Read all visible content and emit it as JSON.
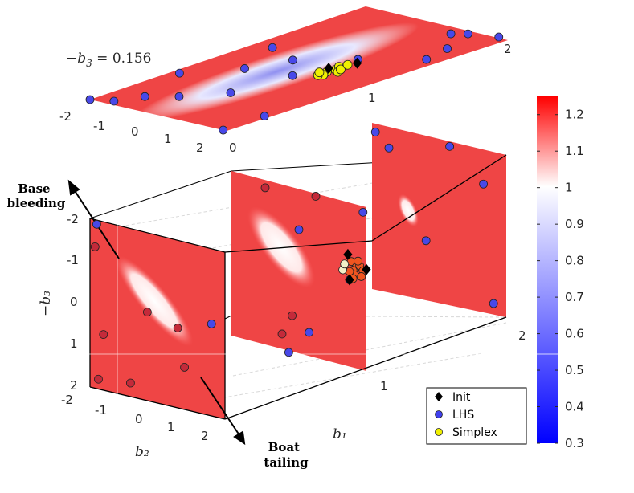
{
  "chart_data": {
    "type": "scatter",
    "title": "",
    "xlabel": "b₁",
    "ylabel": "b₂",
    "zlabel": "−b₃",
    "top_slice_label_lhs": "−b",
    "top_slice_label_sub": "3",
    "top_slice_label_val": " = 0.156",
    "b1_ticks": [
      "0",
      "1",
      "2"
    ],
    "b2_ticks": [
      "-2",
      "-1",
      "0",
      "1",
      "2"
    ],
    "b3_ticks": [
      "-2",
      "-1",
      "0",
      "1",
      "2"
    ],
    "top_b1_ticks": [
      "0",
      "1",
      "2"
    ],
    "top_b2_ticks": [
      "-2",
      "-1",
      "0",
      "1",
      "2"
    ],
    "colorbar": {
      "min": 0.3,
      "max": 1.25,
      "ticks": [
        "0.3",
        "0.4",
        "0.5",
        "0.6",
        "0.7",
        "0.8",
        "0.9",
        "1",
        "1.1",
        "1.2"
      ],
      "colors": [
        "#0000ff",
        "#ffffff",
        "#ff0000"
      ]
    },
    "annotations": [
      {
        "text_lines": [
          "Base",
          "bleeding"
        ]
      },
      {
        "text_lines": [
          "Boat",
          "tailing"
        ]
      }
    ],
    "legend": [
      {
        "name": "Init",
        "marker": "diamond",
        "color": "#000000"
      },
      {
        "name": "LHS",
        "marker": "circle",
        "color": "#4040ee"
      },
      {
        "name": "Simplex",
        "marker": "circle",
        "color": "#f0f000"
      }
    ],
    "series": [
      {
        "name": "LHS",
        "color": "#4848e8",
        "points_top_slice": [
          [
            0.0,
            -2.0
          ],
          [
            0.05,
            -1.5
          ],
          [
            0.2,
            -1.2
          ],
          [
            0.3,
            -0.6
          ],
          [
            0.5,
            0.1
          ],
          [
            0.85,
            -0.9
          ],
          [
            1.1,
            -0.5
          ],
          [
            1.5,
            1.8
          ],
          [
            1.7,
            1.6
          ],
          [
            1.9,
            0.9
          ],
          [
            1.95,
            1.2
          ],
          [
            2.0,
            1.9
          ],
          [
            0.3,
            1.9
          ],
          [
            0.0,
            1.9
          ],
          [
            1.2,
            -1.5
          ],
          [
            0.6,
            -1.8
          ],
          [
            0.9,
            0.3
          ],
          [
            1.3,
            0.6
          ]
        ],
        "points_b1_0": [
          [
            -1.8,
            -1.9
          ],
          [
            1.6,
            -0.2
          ]
        ],
        "points_b1_1": [
          [
            0.0,
            -1.0
          ],
          [
            -0.3,
            2.0
          ],
          [
            1.9,
            -1.8
          ],
          [
            1.5,
            -0.1
          ],
          [
            0.3,
            1.4
          ]
        ],
        "points_b1_2": [
          [
            -1.9,
            -1.8
          ],
          [
            -1.5,
            -1.5
          ],
          [
            0.3,
            -1.9
          ],
          [
            1.6,
            1.6
          ],
          [
            -0.4,
            0.5
          ],
          [
            1.3,
            -1.2
          ]
        ]
      },
      {
        "name": "Simplex",
        "color": "#f0f000",
        "points_top_slice": [
          [
            1.05,
            0.7
          ],
          [
            1.1,
            0.75
          ],
          [
            1.0,
            0.8
          ],
          [
            1.15,
            0.65
          ],
          [
            1.08,
            0.9
          ],
          [
            0.98,
            0.72
          ],
          [
            1.12,
            0.82
          ],
          [
            1.2,
            0.7
          ],
          [
            1.02,
            0.6
          ]
        ]
      },
      {
        "name": "Init",
        "color": "#000000",
        "points_top_slice": [
          [
            1.1,
            0.55
          ],
          [
            1.25,
            0.78
          ]
        ]
      }
    ]
  }
}
